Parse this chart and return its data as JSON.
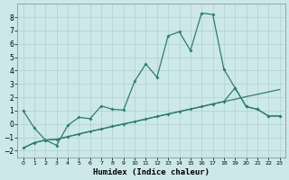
{
  "xlabel": "Humidex (Indice chaleur)",
  "background_color": "#cce8e8",
  "grid_color": "#b0d0d0",
  "line_color": "#2e7d6e",
  "xlim": [
    -0.5,
    23.5
  ],
  "ylim": [
    -2.5,
    9.0
  ],
  "xticks": [
    0,
    1,
    2,
    3,
    4,
    5,
    6,
    7,
    8,
    9,
    10,
    11,
    12,
    13,
    14,
    15,
    16,
    17,
    18,
    19,
    20,
    21,
    22,
    23
  ],
  "yticks": [
    -2,
    -1,
    0,
    1,
    2,
    3,
    4,
    5,
    6,
    7,
    8
  ],
  "series1_x": [
    0,
    1,
    2,
    3,
    4,
    5,
    6,
    7,
    8,
    9,
    10,
    11,
    12,
    13,
    14,
    15,
    16,
    17,
    18,
    19,
    20,
    21,
    22,
    23
  ],
  "series1_y": [
    1.0,
    -0.3,
    -1.2,
    -1.6,
    -0.1,
    0.5,
    0.4,
    1.35,
    1.1,
    1.05,
    3.2,
    4.5,
    3.5,
    6.6,
    6.9,
    5.5,
    8.3,
    8.2,
    4.1,
    2.7,
    1.3,
    1.1,
    0.6,
    0.6
  ],
  "series2_x": [
    0,
    1,
    2,
    3,
    4,
    5,
    6,
    7,
    8,
    9,
    10,
    11,
    12,
    13,
    14,
    15,
    16,
    17,
    18,
    19,
    20,
    21,
    22,
    23
  ],
  "series2_y": [
    -1.8,
    -1.4,
    -1.2,
    -1.15,
    -0.95,
    -0.75,
    -0.55,
    -0.38,
    -0.18,
    0.0,
    0.18,
    0.37,
    0.56,
    0.75,
    0.93,
    1.12,
    1.3,
    1.5,
    1.68,
    1.85,
    2.05,
    2.22,
    2.4,
    2.58
  ],
  "series3_x": [
    0,
    1,
    2,
    3,
    4,
    5,
    6,
    7,
    8,
    9,
    10,
    11,
    12,
    13,
    14,
    15,
    16,
    17,
    18,
    19,
    20,
    21,
    22,
    23
  ],
  "series3_y": [
    -1.8,
    -1.4,
    -1.2,
    -1.15,
    -0.95,
    -0.75,
    -0.55,
    -0.38,
    -0.18,
    0.0,
    0.18,
    0.37,
    0.56,
    0.75,
    0.93,
    1.12,
    1.3,
    1.5,
    1.68,
    2.7,
    1.3,
    1.1,
    0.6,
    0.6
  ]
}
